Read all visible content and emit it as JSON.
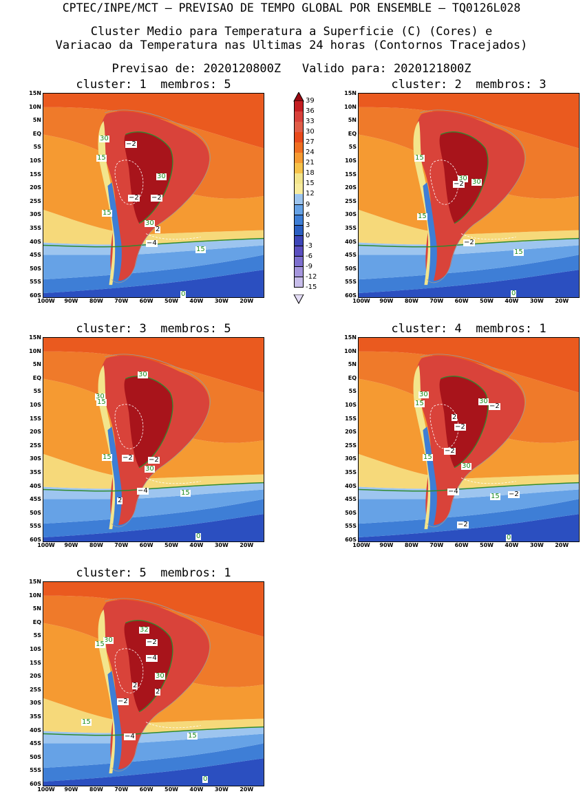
{
  "header": {
    "title": "CPTEC/INPE/MCT – PREVISAO DE TEMPO GLOBAL POR ENSEMBLE – TQ0126L028",
    "subtitle_line1": "Cluster Medio para Temperatura a Superficie (C) (Cores) e",
    "subtitle_line2": "Variacao da Temperatura nas Ultimas 24 horas (Contornos Tracejados)",
    "forecast_label": "Previsao de:",
    "forecast_date": "2020120800Z",
    "valid_label": "Valido para:",
    "valid_date": "2020121800Z"
  },
  "axes": {
    "lat_ticks": [
      "15N",
      "10N",
      "5N",
      "EQ",
      "5S",
      "10S",
      "15S",
      "20S",
      "25S",
      "30S",
      "35S",
      "40S",
      "45S",
      "50S",
      "55S",
      "60S"
    ],
    "lon_ticks": [
      "100W",
      "90W",
      "80W",
      "70W",
      "60W",
      "50W",
      "40W",
      "30W",
      "20W"
    ]
  },
  "legend": {
    "levels": [
      "39",
      "36",
      "33",
      "30",
      "27",
      "24",
      "21",
      "18",
      "15",
      "12",
      "9",
      "6",
      "3",
      "0",
      "-3",
      "-6",
      "-9",
      "-12",
      "-15"
    ],
    "colors": [
      "#9a0a12",
      "#c41e22",
      "#d8413b",
      "#e05d48",
      "#e84a1c",
      "#ef6f22",
      "#f59a32",
      "#f6c24a",
      "#f3e58c",
      "#f8ec9e",
      "#9dc5ef",
      "#66a2e6",
      "#3e7ed6",
      "#2b5fc2",
      "#3d46b8",
      "#5b4fc0",
      "#7e70cf",
      "#a596dd",
      "#c7bdea",
      "#e3dcf5"
    ]
  },
  "panels": [
    {
      "cluster_label": "cluster:",
      "cluster": "1",
      "members_label": "membros:",
      "members": "5",
      "labels": [
        {
          "t": "30",
          "c": "g"
        },
        {
          "t": "−2",
          "c": "k"
        },
        {
          "t": "15",
          "c": "g"
        },
        {
          "t": "30",
          "c": "g"
        },
        {
          "t": "−2",
          "c": "k"
        },
        {
          "t": "−2",
          "c": "k"
        },
        {
          "t": "15",
          "c": "g"
        },
        {
          "t": "30",
          "c": "g"
        },
        {
          "t": "2",
          "c": "k"
        },
        {
          "t": "−4",
          "c": "k"
        },
        {
          "t": "15",
          "c": "g"
        },
        {
          "t": "0",
          "c": "g"
        }
      ]
    },
    {
      "cluster_label": "cluster:",
      "cluster": "2",
      "members_label": "membros:",
      "members": "3",
      "labels": [
        {
          "t": "15",
          "c": "g"
        },
        {
          "t": "30",
          "c": "g"
        },
        {
          "t": "−2",
          "c": "k"
        },
        {
          "t": "30",
          "c": "g"
        },
        {
          "t": "15",
          "c": "g"
        },
        {
          "t": "−2",
          "c": "k"
        },
        {
          "t": "15",
          "c": "g"
        },
        {
          "t": "0",
          "c": "g"
        }
      ]
    },
    {
      "cluster_label": "cluster:",
      "cluster": "3",
      "members_label": "membros:",
      "members": "5",
      "labels": [
        {
          "t": "30",
          "c": "g"
        },
        {
          "t": "30",
          "c": "g"
        },
        {
          "t": "15",
          "c": "g"
        },
        {
          "t": "15",
          "c": "g"
        },
        {
          "t": "−2",
          "c": "k"
        },
        {
          "t": "−2",
          "c": "k"
        },
        {
          "t": "30",
          "c": "g"
        },
        {
          "t": "−4",
          "c": "k"
        },
        {
          "t": "15",
          "c": "g"
        },
        {
          "t": "2",
          "c": "k"
        },
        {
          "t": "0",
          "c": "g"
        }
      ]
    },
    {
      "cluster_label": "cluster:",
      "cluster": "4",
      "members_label": "membros:",
      "members": "1",
      "labels": [
        {
          "t": "30",
          "c": "g"
        },
        {
          "t": "15",
          "c": "g"
        },
        {
          "t": "30",
          "c": "g"
        },
        {
          "t": "−2",
          "c": "k"
        },
        {
          "t": "2",
          "c": "k"
        },
        {
          "t": "−2",
          "c": "k"
        },
        {
          "t": "−2",
          "c": "k"
        },
        {
          "t": "15",
          "c": "g"
        },
        {
          "t": "30",
          "c": "g"
        },
        {
          "t": "−4",
          "c": "k"
        },
        {
          "t": "15",
          "c": "g"
        },
        {
          "t": "−2",
          "c": "k"
        },
        {
          "t": "−2",
          "c": "k"
        },
        {
          "t": "0",
          "c": "g"
        }
      ]
    },
    {
      "cluster_label": "cluster:",
      "cluster": "5",
      "members_label": "membros:",
      "members": "1",
      "labels": [
        {
          "t": "32",
          "c": "g"
        },
        {
          "t": "30",
          "c": "g"
        },
        {
          "t": "15",
          "c": "g"
        },
        {
          "t": "−2",
          "c": "k"
        },
        {
          "t": "−4",
          "c": "k"
        },
        {
          "t": "30",
          "c": "g"
        },
        {
          "t": "2",
          "c": "k"
        },
        {
          "t": "2",
          "c": "k"
        },
        {
          "t": "−2",
          "c": "k"
        },
        {
          "t": "15",
          "c": "g"
        },
        {
          "t": "−4",
          "c": "k"
        },
        {
          "t": "15",
          "c": "g"
        },
        {
          "t": "0",
          "c": "g"
        }
      ]
    }
  ]
}
